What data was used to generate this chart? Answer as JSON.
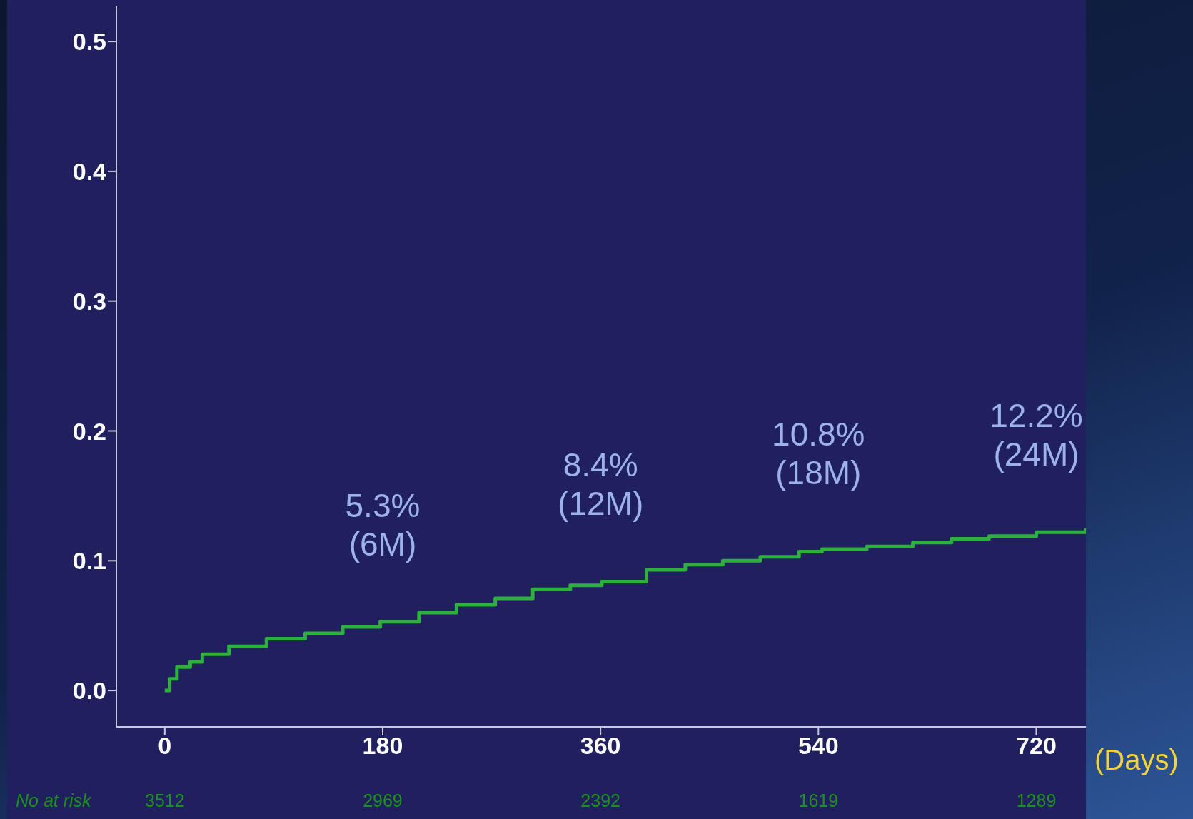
{
  "chart_data": {
    "type": "step",
    "xlabel": "(Days)",
    "x": [
      0,
      4,
      10,
      21,
      31,
      53,
      84,
      116,
      147,
      178,
      210,
      241,
      273,
      304,
      335,
      361,
      398,
      430,
      461,
      492,
      524,
      543,
      580,
      618,
      650,
      681,
      720,
      761
    ],
    "series": [
      {
        "color": "#2eb03c",
        "values": [
          0,
          0.009,
          0.018,
          0.022,
          0.028,
          0.034,
          0.04,
          0.044,
          0.049,
          0.053,
          0.06,
          0.066,
          0.071,
          0.078,
          0.081,
          0.084,
          0.093,
          0.097,
          0.1,
          0.103,
          0.107,
          0.109,
          0.111,
          0.114,
          0.117,
          0.119,
          0.122,
          0.125
        ]
      }
    ],
    "xlim": [
      -40,
      761
    ],
    "xticks": [
      0,
      180,
      360,
      540,
      720
    ],
    "ylim": [
      -0.028,
      0.527
    ],
    "yticks": [
      {
        "value": 0,
        "label": "0.0"
      },
      0.1,
      0.2,
      0.3,
      0.4,
      0.5
    ],
    "grid": false,
    "legend": false,
    "marker": "none",
    "line_style": "solid",
    "annotations": [
      {
        "text": "5.3%\n(6M)",
        "x": 180,
        "y": 0.053
      },
      {
        "text": "8.4%\n(12M)",
        "x": 360,
        "y": 0.084
      },
      {
        "text": "10.8%\n(18M)",
        "x": 540,
        "y": 0.108
      },
      {
        "text": "12.2%\n(24M)",
        "x": 720,
        "y": 0.122
      },
      "No at risk",
      "3512",
      "2969",
      "2392",
      "1619",
      "1289"
    ]
  }
}
